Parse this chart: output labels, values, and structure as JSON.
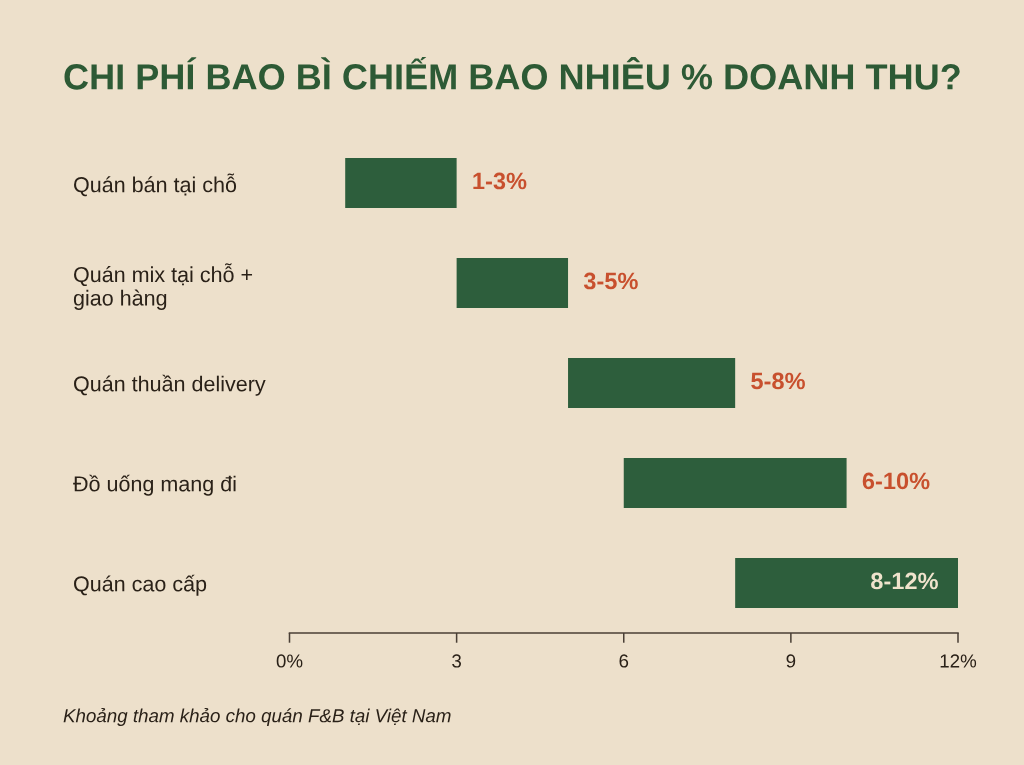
{
  "chart_data": {
    "type": "bar",
    "orientation": "horizontal",
    "title": "CHI PHÍ BAO BÌ CHIẾM BAO NHIÊU % DOANH THU?",
    "categories": [
      "Quán bán tại chỗ",
      "Quán mix tại chỗ +\ngiao hàng",
      "Quán thuần delivery",
      "Đồ uống mang đi",
      "Quán cao cấp"
    ],
    "base": [
      1,
      3,
      5,
      6,
      8
    ],
    "values": [
      2,
      2,
      3,
      4,
      4
    ],
    "color": "#2d5e3c",
    "xlim": [
      0,
      12
    ],
    "xticks": [
      {
        "value": 0,
        "label": "0%"
      },
      3,
      6,
      9,
      {
        "value": 12,
        "label": "12%"
      }
    ],
    "annotations": [
      {
        "text": "1-3%",
        "x": 3,
        "y": "Quán bán tại chỗ"
      },
      {
        "text": "3-5%",
        "x": 5,
        "y": "Quán mix tại chỗ +\ngiao hàng"
      },
      {
        "text": "5-8%",
        "x": 8,
        "y": "Quán thuần delivery"
      },
      {
        "text": "6-10%",
        "x": 10,
        "y": "Đồ uống mang đi"
      },
      {
        "text": "8-12%",
        "x": 12,
        "y": "Quán cao cấp"
      },
      "Khoảng tham khảo cho quán F&B tại Việt Nam"
    ],
    "grid": false,
    "legend": false
  }
}
